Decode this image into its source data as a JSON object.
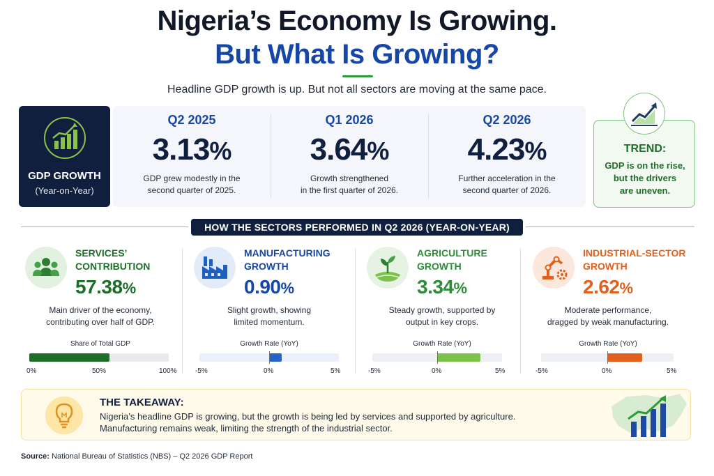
{
  "header": {
    "title_line1": "Nigeria’s Economy Is Growing.",
    "title_line2": "But What Is Growing?",
    "subtitle": "Headline GDP growth is up. But not all sectors are moving at the same pace."
  },
  "gdp_box": {
    "label": "GDP GROWTH",
    "sublabel": "(Year-on-Year)",
    "icon": "bar-chart-up-icon"
  },
  "stats": [
    {
      "period": "Q2 2025",
      "value": "3.13",
      "unit": "%",
      "desc_line1": "GDP grew modestly in the",
      "desc_line2": "second quarter of 2025."
    },
    {
      "period": "Q1 2026",
      "value": "3.64",
      "unit": "%",
      "desc_line1": "Growth strengthened",
      "desc_line2": "in the first quarter of 2026."
    },
    {
      "period": "Q2 2026",
      "value": "4.23",
      "unit": "%",
      "desc_line1": "Further acceleration in the",
      "desc_line2": "second quarter of 2026."
    }
  ],
  "trend": {
    "title": "TREND:",
    "line1": "GDP is on the rise,",
    "line2": "but the drivers",
    "line3": "are uneven.",
    "icon": "line-chart-up-icon"
  },
  "section_title": "HOW THE SECTORS PERFORMED IN Q2 2026 (YEAR-ON-YEAR)",
  "sectors": [
    {
      "name_line1": "SERVICES’",
      "name_line2": "CONTRIBUTION",
      "value": "57.38",
      "unit": "%",
      "desc_line1": "Main driver of the economy,",
      "desc_line2": "contributing over half of GDP.",
      "bar_title": "Share of Total GDP",
      "ticks": [
        "0%",
        "50%",
        "100%"
      ],
      "range": [
        0,
        100
      ],
      "bar_value": 57.38,
      "color": "#1e6e2a",
      "bar_color": "#1e6e2a",
      "icon": "people-icon"
    },
    {
      "name_line1": "MANUFACTURING",
      "name_line2": "GROWTH",
      "value": "0.90",
      "unit": "%",
      "desc_line1": "Slight growth, showing",
      "desc_line2": "limited momentum.",
      "bar_title": "Growth Rate (YoY)",
      "ticks": [
        "-5%",
        "0%",
        "5%"
      ],
      "range": [
        -5,
        5
      ],
      "bar_value": 0.9,
      "color": "#1747a6",
      "bar_color": "#2563c9",
      "icon": "factory-icon"
    },
    {
      "name_line1": "AGRICULTURE",
      "name_line2": "GROWTH",
      "value": "3.34",
      "unit": "%",
      "desc_line1": "Steady growth, supported by",
      "desc_line2": "output in key crops.",
      "bar_title": "Growth Rate (YoY)",
      "ticks": [
        "-5%",
        "0%",
        "5%"
      ],
      "range": [
        -5,
        5
      ],
      "bar_value": 3.34,
      "color": "#2e8b3a",
      "bar_color": "#7cc24a",
      "icon": "sprout-icon"
    },
    {
      "name_line1": "INDUSTRIAL-SECTOR",
      "name_line2": "GROWTH",
      "value": "2.62",
      "unit": "%",
      "desc_line1": "Moderate performance,",
      "desc_line2": "dragged by weak manufacturing.",
      "bar_title": "Growth Rate (YoY)",
      "ticks": [
        "-5%",
        "0%",
        "5%"
      ],
      "range": [
        -5,
        5
      ],
      "bar_value": 2.62,
      "color": "#e0601e",
      "bar_color": "#e0601e",
      "icon": "robot-arm-icon"
    }
  ],
  "takeaway": {
    "title": "THE TAKEAWAY:",
    "line1": "Nigeria’s headline GDP is growing, but the growth is being led by services and supported by agriculture.",
    "line2": "Manufacturing remains weak, limiting the strength of the industrial sector.",
    "icon": "lightbulb-icon"
  },
  "source": {
    "label": "Source:",
    "text": "National Bureau of Statistics (NBS) – Q2 2026 GDP Report"
  },
  "colors": {
    "navy": "#0f1f3d",
    "blue": "#1747a6",
    "green": "#1e6e2a",
    "orange": "#e0601e"
  }
}
